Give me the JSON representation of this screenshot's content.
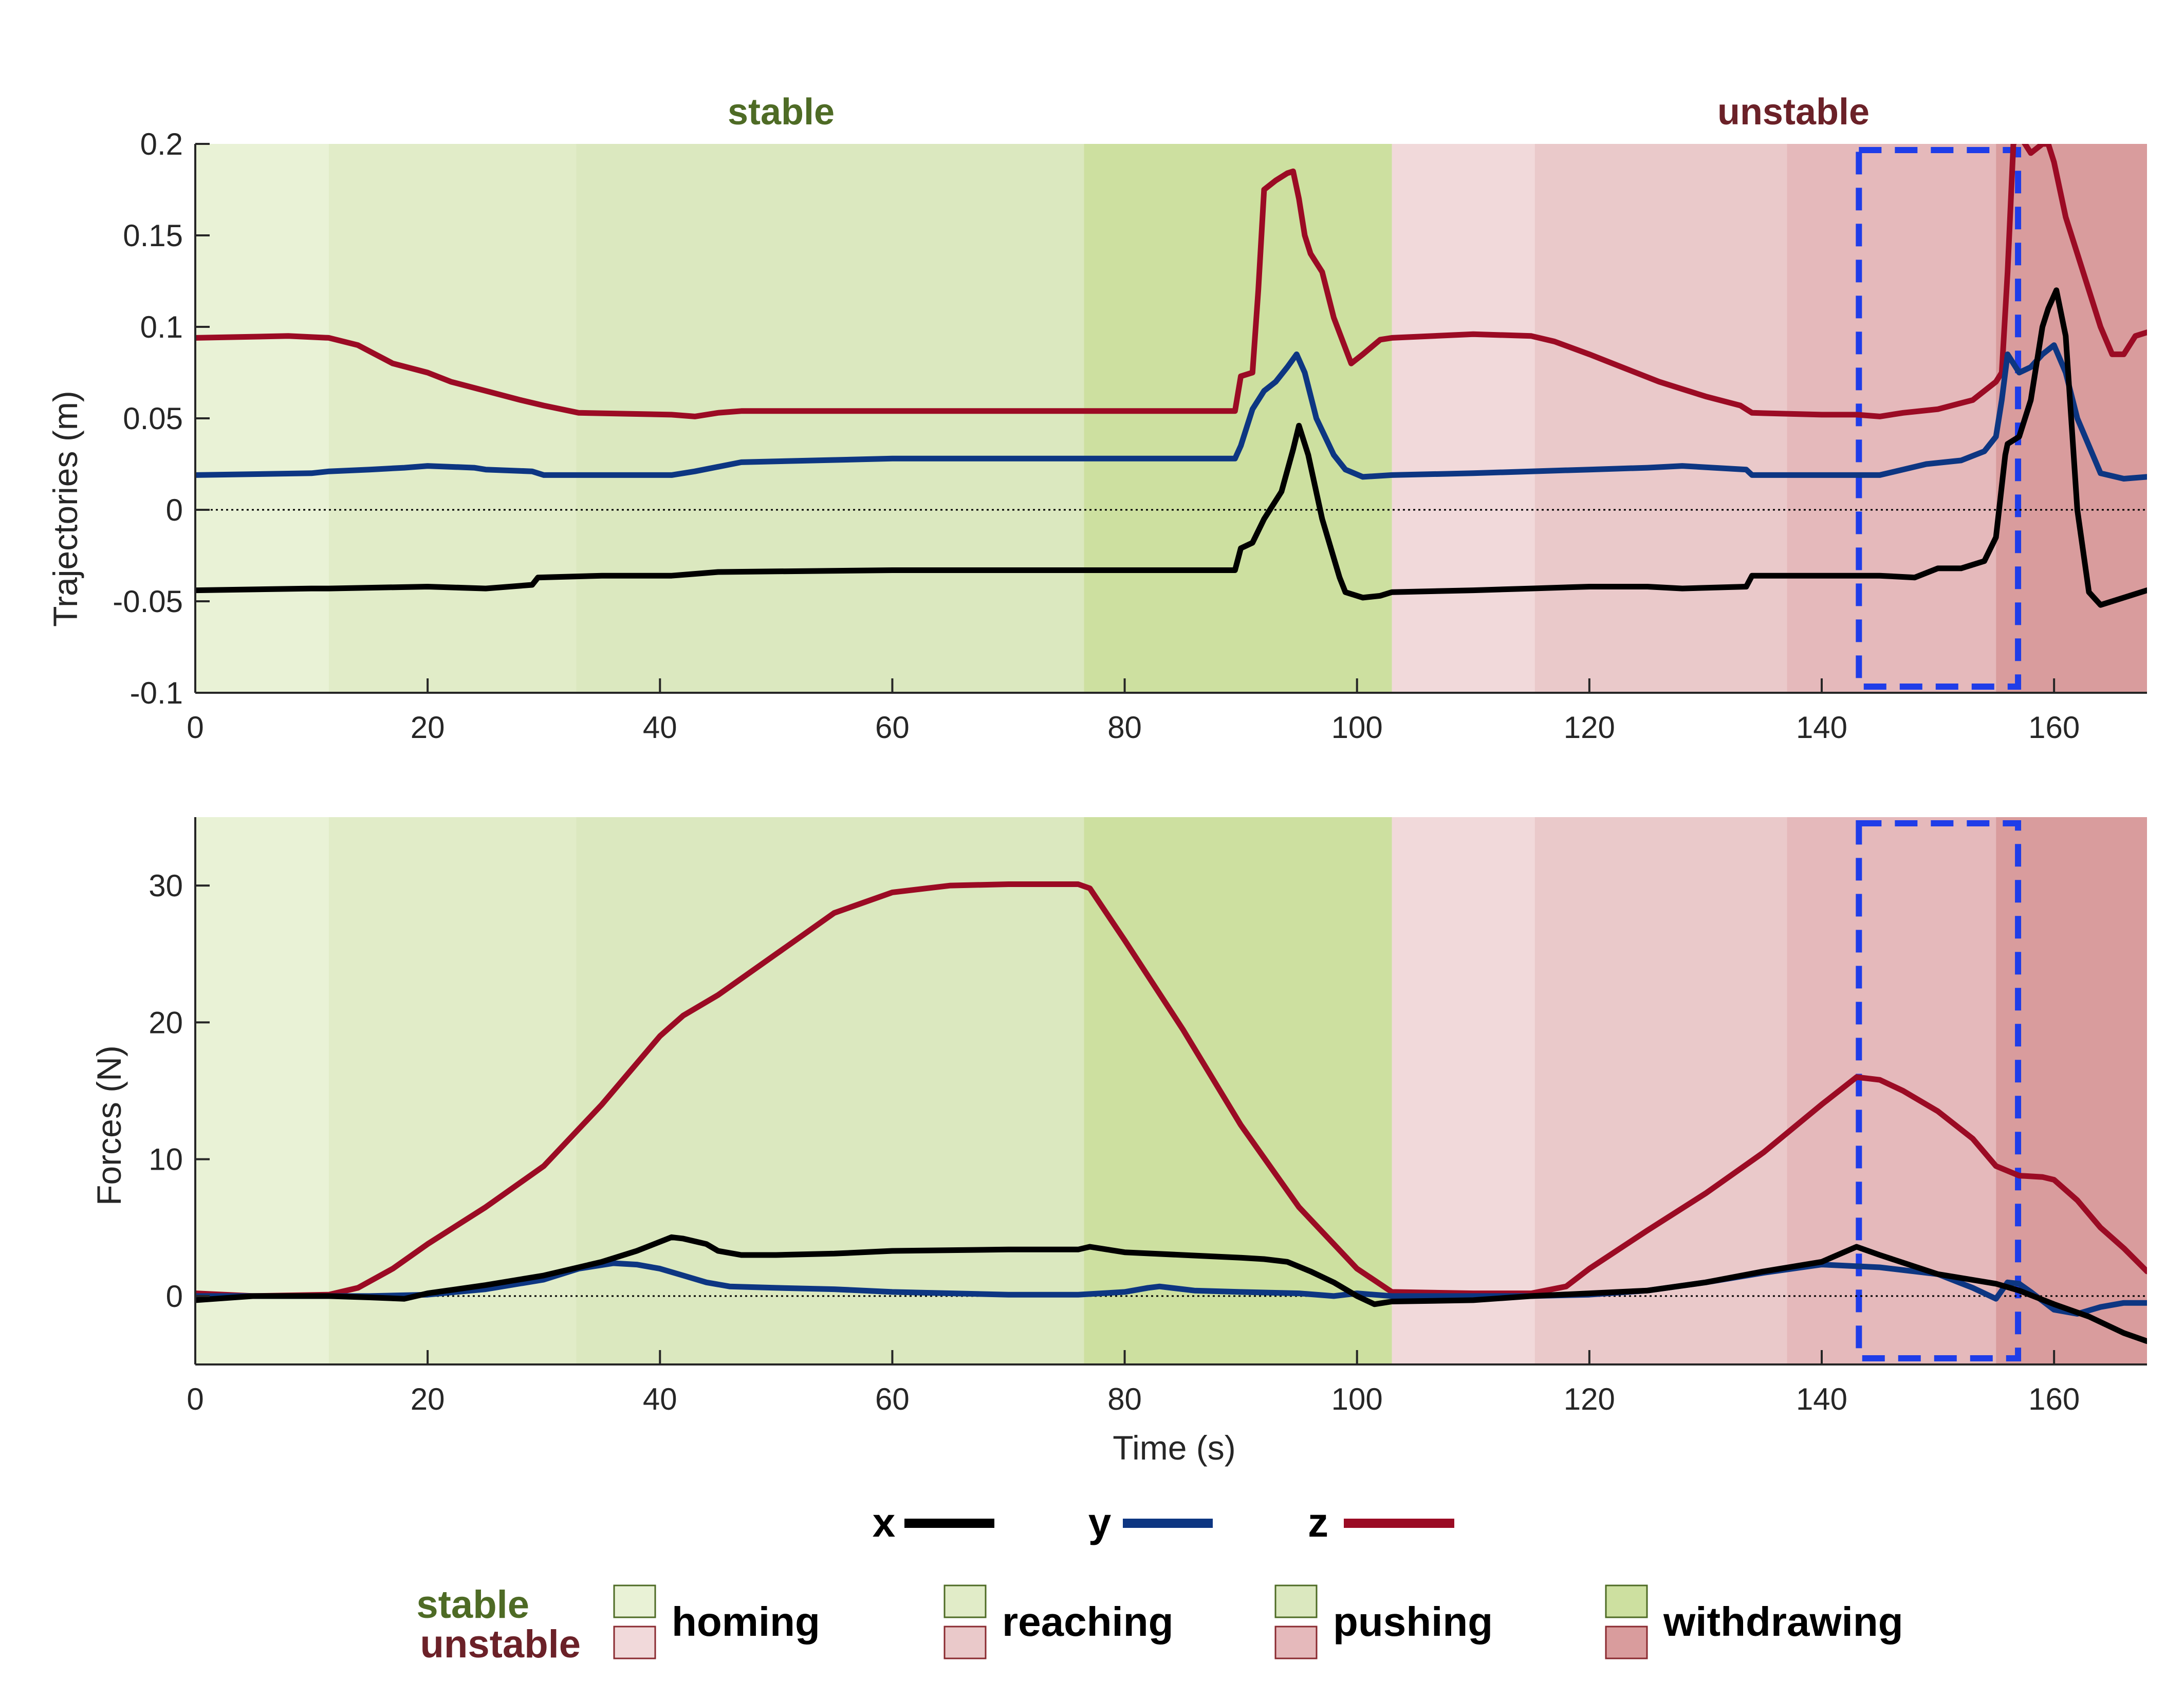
{
  "colors": {
    "x": "#000000",
    "y": "#0d3682",
    "z": "#9b0b24",
    "stable_text": "#4e6b25",
    "unstable_text": "#6b2128",
    "box": "#1f3de8",
    "stable_phase": [
      "#e9f2d6",
      "#e1ecc8",
      "#dbe8bf",
      "#cde0a0"
    ],
    "unstable_phase": [
      "#f1d9da",
      "#eac9ca",
      "#e5b9bb",
      "#d99c9d"
    ]
  },
  "conditions": {
    "stable": "stable",
    "unstable": "unstable"
  },
  "phases": [
    "homing",
    "reaching",
    "pushing",
    "withdrawing"
  ],
  "legend": {
    "x": "x",
    "y": "y",
    "z": "z"
  },
  "highlight_box": {
    "x_range": [
      143.2,
      156.9
    ]
  },
  "chart_data": [
    {
      "type": "line",
      "ylabel": "Trajectories (m)",
      "xlabel": "",
      "xlim": [
        0,
        168
      ],
      "ylim": [
        -0.1,
        0.2
      ],
      "xticks": [
        0,
        20,
        40,
        60,
        80,
        100,
        120,
        140,
        160
      ],
      "yticks": [
        -0.1,
        -0.05,
        0,
        0.05,
        0.1,
        0.15,
        0.2
      ],
      "ytick_labels": [
        "-0.1",
        "-0.05",
        "0",
        "0.05",
        "0.1",
        "0.15",
        "0.2"
      ],
      "zero_line": true,
      "phase_boundaries": {
        "stable": [
          0,
          11.5,
          32.8,
          76.5,
          103
        ],
        "unstable": [
          103,
          115.3,
          137,
          155,
          168
        ]
      },
      "series": [
        {
          "name": "x",
          "x": [
            0,
            10,
            11.5,
            20,
            25,
            29,
            29.5,
            35,
            41,
            43,
            45,
            60,
            80,
            89.5,
            90,
            91,
            92,
            93.5,
            94.5,
            95,
            95.8,
            97,
            98.5,
            99,
            100.5,
            102,
            103,
            110,
            115,
            120,
            125,
            128,
            133.5,
            134,
            140,
            145,
            148,
            150,
            152,
            154,
            155,
            155.8,
            156,
            157,
            158,
            159,
            159.5,
            160.2,
            161,
            162,
            163,
            164,
            166,
            168
          ],
          "y": [
            -0.044,
            -0.043,
            -0.043,
            -0.042,
            -0.043,
            -0.041,
            -0.037,
            -0.036,
            -0.036,
            -0.035,
            -0.034,
            -0.033,
            -0.033,
            -0.033,
            -0.021,
            -0.018,
            -0.005,
            0.01,
            0.033,
            0.046,
            0.03,
            -0.005,
            -0.037,
            -0.045,
            -0.048,
            -0.047,
            -0.045,
            -0.044,
            -0.043,
            -0.042,
            -0.042,
            -0.043,
            -0.042,
            -0.036,
            -0.036,
            -0.036,
            -0.037,
            -0.032,
            -0.032,
            -0.028,
            -0.015,
            0.03,
            0.036,
            0.04,
            0.06,
            0.1,
            0.11,
            0.12,
            0.095,
            0.0,
            -0.045,
            -0.052,
            -0.048,
            -0.044
          ]
        },
        {
          "name": "y",
          "x": [
            0,
            10,
            11.5,
            15,
            18,
            20,
            24,
            25,
            29,
            30,
            35,
            41,
            43,
            47,
            60,
            80,
            89.5,
            90,
            91,
            92,
            93,
            94,
            94.8,
            95.5,
            96.5,
            98,
            99,
            100.5,
            103,
            110,
            115,
            120,
            125,
            128,
            133.5,
            134,
            140,
            145,
            149,
            152,
            154,
            155,
            155.5,
            156,
            157,
            158,
            159,
            160,
            161,
            162,
            164,
            166,
            168
          ],
          "y": [
            0.019,
            0.02,
            0.021,
            0.022,
            0.023,
            0.024,
            0.023,
            0.022,
            0.021,
            0.019,
            0.019,
            0.019,
            0.021,
            0.026,
            0.028,
            0.028,
            0.028,
            0.035,
            0.055,
            0.065,
            0.07,
            0.078,
            0.085,
            0.075,
            0.05,
            0.03,
            0.022,
            0.018,
            0.019,
            0.02,
            0.021,
            0.022,
            0.023,
            0.024,
            0.022,
            0.019,
            0.019,
            0.019,
            0.025,
            0.027,
            0.032,
            0.04,
            0.06,
            0.085,
            0.075,
            0.078,
            0.085,
            0.09,
            0.075,
            0.05,
            0.02,
            0.017,
            0.018
          ]
        },
        {
          "name": "z",
          "x": [
            0,
            8,
            11.5,
            14,
            17,
            20,
            22,
            25,
            28,
            30,
            33,
            41,
            43,
            45,
            47,
            60,
            80,
            89.5,
            90,
            91,
            91.5,
            92,
            93,
            94,
            94.5,
            95,
            95.5,
            96,
            97,
            98,
            99.5,
            100.5,
            102,
            103,
            110,
            115,
            117,
            120,
            122,
            126,
            130,
            133,
            134,
            140,
            143,
            145,
            147,
            150,
            153,
            155,
            155.5,
            156,
            156.5,
            157,
            158,
            159,
            159.5,
            160,
            161,
            162,
            163,
            164,
            165,
            166,
            167,
            168
          ],
          "y": [
            0.094,
            0.095,
            0.094,
            0.09,
            0.08,
            0.075,
            0.07,
            0.065,
            0.06,
            0.057,
            0.053,
            0.052,
            0.051,
            0.053,
            0.054,
            0.054,
            0.054,
            0.054,
            0.073,
            0.075,
            0.12,
            0.175,
            0.18,
            0.184,
            0.185,
            0.17,
            0.15,
            0.14,
            0.13,
            0.105,
            0.08,
            0.085,
            0.093,
            0.094,
            0.096,
            0.095,
            0.092,
            0.085,
            0.08,
            0.07,
            0.062,
            0.057,
            0.053,
            0.052,
            0.052,
            0.051,
            0.053,
            0.055,
            0.06,
            0.07,
            0.075,
            0.13,
            0.2,
            0.205,
            0.195,
            0.2,
            0.2,
            0.19,
            0.16,
            0.14,
            0.12,
            0.1,
            0.085,
            0.085,
            0.095,
            0.097
          ]
        }
      ]
    },
    {
      "type": "line",
      "ylabel": "Forces (N)",
      "xlabel": "Time (s)",
      "xlim": [
        0,
        168
      ],
      "ylim": [
        -5,
        35
      ],
      "xticks": [
        0,
        20,
        40,
        60,
        80,
        100,
        120,
        140,
        160
      ],
      "yticks": [
        0,
        10,
        20,
        30
      ],
      "ytick_labels": [
        "0",
        "10",
        "20",
        "30"
      ],
      "zero_line": true,
      "phase_boundaries": {
        "stable": [
          0,
          11.5,
          32.8,
          76.5,
          103
        ],
        "unstable": [
          103,
          115.3,
          137,
          155,
          168
        ]
      },
      "series": [
        {
          "name": "x",
          "x": [
            0,
            5,
            11.5,
            15,
            18,
            20,
            25,
            30,
            35,
            38,
            41,
            42,
            44,
            45,
            47,
            50,
            55,
            60,
            70,
            76,
            77,
            80,
            85,
            90,
            92,
            94,
            96,
            98,
            100,
            101.5,
            103,
            110,
            115,
            120,
            125,
            130,
            135,
            140,
            143,
            145,
            150,
            155,
            157,
            160,
            163,
            166,
            168
          ],
          "y": [
            -0.3,
            0,
            0,
            -0.1,
            -0.2,
            0.2,
            0.8,
            1.5,
            2.5,
            3.3,
            4.3,
            4.2,
            3.8,
            3.3,
            3.0,
            3.0,
            3.1,
            3.3,
            3.4,
            3.4,
            3.6,
            3.2,
            3.0,
            2.8,
            2.7,
            2.5,
            1.8,
            1.0,
            0.0,
            -0.6,
            -0.4,
            -0.3,
            0,
            0.2,
            0.4,
            1.0,
            1.8,
            2.5,
            3.6,
            3.0,
            1.6,
            0.9,
            0.4,
            -0.6,
            -1.5,
            -2.7,
            -3.3
          ]
        },
        {
          "name": "y",
          "x": [
            0,
            11.5,
            15,
            20,
            25,
            30,
            33,
            36,
            38,
            40,
            42,
            44,
            46,
            50,
            55,
            60,
            70,
            76,
            80,
            82,
            83,
            86,
            90,
            95,
            98,
            100,
            103,
            110,
            115,
            120,
            125,
            130,
            135,
            140,
            145,
            150,
            153,
            155,
            156,
            157,
            158,
            160,
            162,
            164,
            166,
            168
          ],
          "y": [
            0,
            0,
            0,
            0.1,
            0.5,
            1.2,
            2.0,
            2.4,
            2.3,
            2.0,
            1.5,
            1.0,
            0.7,
            0.6,
            0.5,
            0.3,
            0.1,
            0.1,
            0.3,
            0.6,
            0.7,
            0.4,
            0.3,
            0.2,
            0.0,
            0.2,
            0,
            0,
            0,
            0.1,
            0.4,
            1.0,
            1.7,
            2.3,
            2.1,
            1.6,
            0.6,
            -0.2,
            1.0,
            0.9,
            0.3,
            -1.0,
            -1.3,
            -0.8,
            -0.5,
            -0.5
          ]
        },
        {
          "name": "z",
          "x": [
            0,
            5,
            11.5,
            14,
            17,
            20,
            25,
            30,
            35,
            40,
            42,
            45,
            50,
            55,
            60,
            65,
            70,
            76,
            77,
            80,
            85,
            90,
            95,
            100,
            103,
            110,
            115,
            118,
            120,
            125,
            130,
            135,
            140,
            143,
            145,
            147,
            150,
            153,
            155,
            157,
            159,
            160,
            162,
            164,
            166,
            168
          ],
          "y": [
            0.2,
            0,
            0.1,
            0.6,
            2.0,
            3.8,
            6.5,
            9.5,
            14.0,
            19.0,
            20.5,
            22.0,
            25.0,
            28.0,
            29.5,
            30.0,
            30.1,
            30.1,
            29.8,
            26.0,
            19.5,
            12.5,
            6.5,
            2.0,
            0.3,
            0.2,
            0.2,
            0.7,
            2.0,
            4.8,
            7.5,
            10.5,
            14.0,
            16.0,
            15.8,
            15.0,
            13.5,
            11.5,
            9.5,
            8.8,
            8.7,
            8.5,
            7.0,
            5.0,
            3.5,
            1.8
          ]
        }
      ]
    }
  ]
}
